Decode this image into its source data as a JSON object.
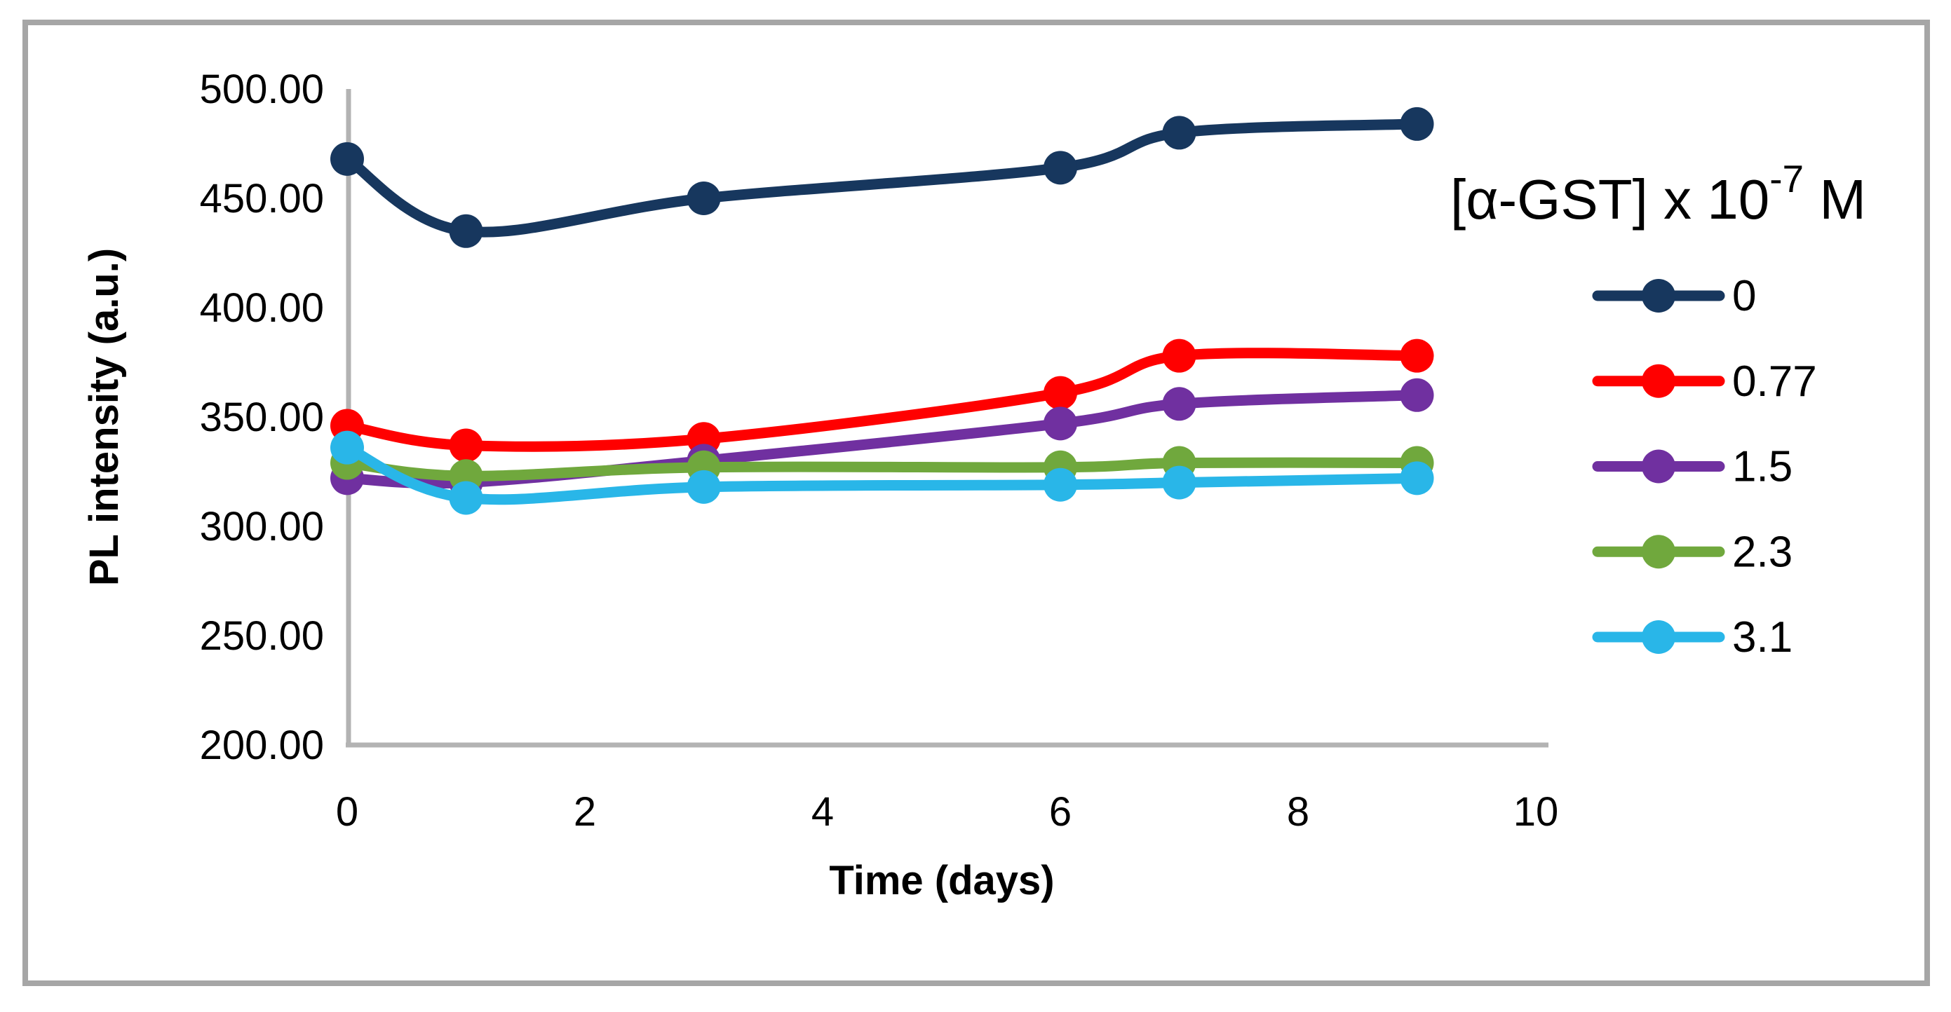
{
  "figure": {
    "background": "#FFFFFF",
    "border_color": "#A6A6A6",
    "axis_line_color": "#B3B3B3"
  },
  "chart_data": {
    "type": "line",
    "title": "",
    "xlabel": "Time (days)",
    "ylabel": "PL intensity (a.u.)",
    "x": [
      0,
      1,
      3,
      6,
      7,
      9
    ],
    "series": [
      {
        "name": "0",
        "color": "#17375E",
        "values": [
          468,
          435,
          450,
          464,
          480,
          484
        ]
      },
      {
        "name": "0.77",
        "color": "#FF0000",
        "values": [
          346,
          337,
          340,
          361,
          378,
          378
        ]
      },
      {
        "name": "1.5",
        "color": "#7030A0",
        "values": [
          322,
          320,
          330,
          347,
          356,
          360
        ]
      },
      {
        "name": "2.3",
        "color": "#70A83D",
        "values": [
          329,
          323,
          327,
          327,
          329,
          329
        ]
      },
      {
        "name": "3.1",
        "color": "#29B6E8",
        "values": [
          336,
          313,
          318,
          319,
          320,
          322
        ]
      }
    ],
    "xlim": [
      0,
      10
    ],
    "ylim": [
      200,
      500
    ],
    "x_ticks": [
      {
        "v": 0,
        "label": "0"
      },
      {
        "v": 2,
        "label": "2"
      },
      {
        "v": 4,
        "label": "4"
      },
      {
        "v": 6,
        "label": "6"
      },
      {
        "v": 8,
        "label": "8"
      },
      {
        "v": 10,
        "label": "10"
      }
    ],
    "y_ticks": [
      {
        "v": 500,
        "label": "500.00"
      },
      {
        "v": 450,
        "label": "450.00"
      },
      {
        "v": 400,
        "label": "400.00"
      },
      {
        "v": 350,
        "label": "350.00"
      },
      {
        "v": 300,
        "label": "300.00"
      },
      {
        "v": 250,
        "label": "250.00"
      },
      {
        "v": 200,
        "label": "200.00"
      }
    ],
    "grid": "off",
    "legend_position": "right",
    "legend_title": {
      "base": "[α-GST] x 10",
      "exponent": "-7",
      "unit": " M"
    },
    "marker": "circle",
    "line_smoothing": "on"
  }
}
